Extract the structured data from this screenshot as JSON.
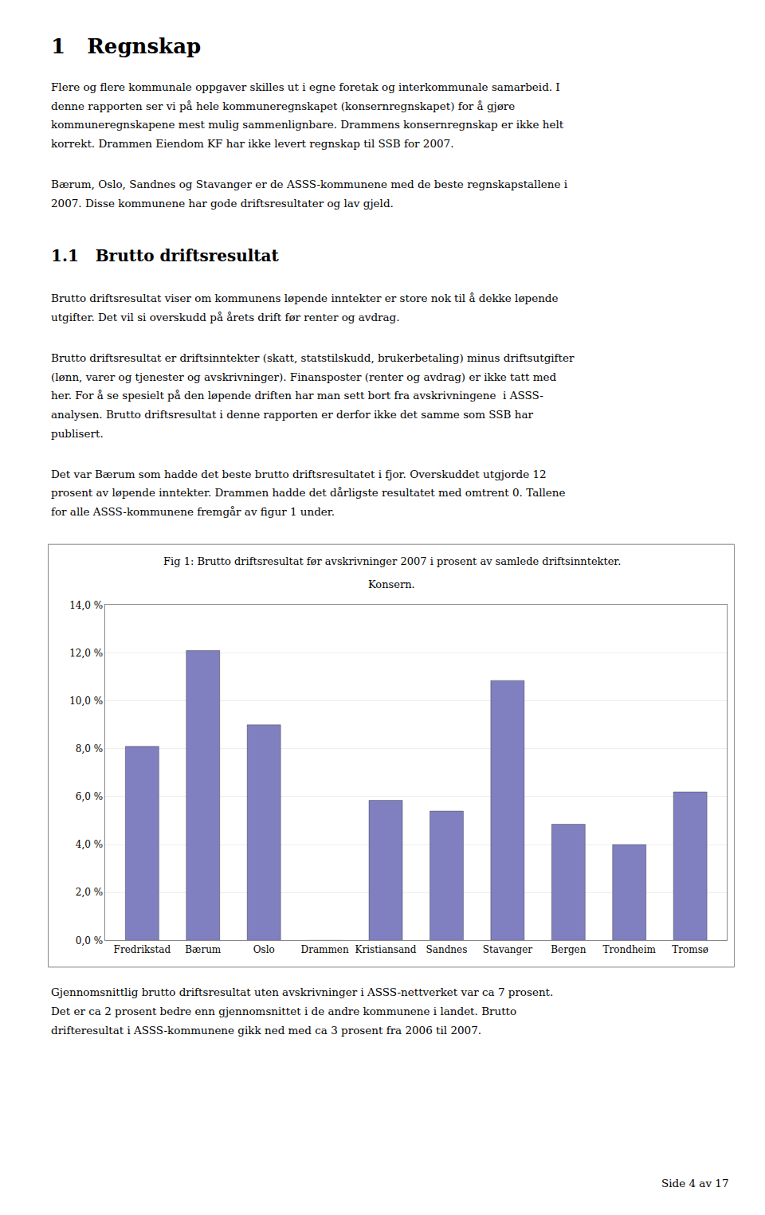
{
  "page_title": "1   Regnskap",
  "paragraphs_before_section": [
    [
      "Flere og flere kommunale oppgaver skilles ut i egne foretak og interkommunale samarbeid. I",
      "denne rapporten ser vi på hele kommuneregnskapet (konsernregnskapet) for å gjøre",
      "kommuneregnskapene mest mulig sammenlignbare. Drammens konsernregnskap er ikke helt",
      "korrekt. Drammen Eiendom KF har ikke levert regnskap til SSB for 2007."
    ],
    [
      "Bærum, Oslo, Sandnes og Stavanger er de ASSS-kommunene med de beste regnskapstallene i",
      "2007. Disse kommunene har gode driftsresultater og lav gjeld."
    ]
  ],
  "section_title": "1.1   Brutto driftsresultat",
  "paragraphs_after_section": [
    [
      "Brutto driftsresultat viser om kommunens løpende inntekter er store nok til å dekke løpende",
      "utgifter. Det vil si overskudd på årets drift før renter og avdrag."
    ],
    [
      "Brutto driftsresultat er driftsinntekter (skatt, statstilskudd, brukerbetaling) minus driftsutgifter",
      "(lønn, varer og tjenester og avskrivninger). Finansposter (renter og avdrag) er ikke tatt med",
      "her. For å se spesielt på den løpende driften har man sett bort fra avskrivningene  i ASSS-",
      "analysen. Brutto driftsresultat i denne rapporten er derfor ikke det samme som SSB har",
      "publisert."
    ],
    [
      "Det var Bærum som hadde det beste brutto driftsresultatet i fjor. Overskuddet utgjorde 12",
      "prosent av løpende inntekter. Drammen hadde det dårligste resultatet med omtrent 0. Tallene",
      "for alle ASSS-kommunene fremgår av figur 1 under."
    ]
  ],
  "paragraph_after_chart": [
    "Gjennomsnittlig brutto driftsresultat uten avskrivninger i ASSS-nettverket var ca 7 prosent.",
    "Det er ca 2 prosent bedre enn gjennomsnittet i de andre kommunene i landet. Brutto",
    "drifteresultat i ASSS-kommunene gikk ned med ca 3 prosent fra 2006 til 2007."
  ],
  "page_number": "Side 4 av 17",
  "chart_data": {
    "type": "bar",
    "title": "Fig 1: Brutto driftsresultat før avskrivninger 2007 i prosent av samlede driftsinntekter.",
    "subtitle": "Konsern.",
    "categories": [
      "Fredrikstad",
      "Bærum",
      "Oslo",
      "Drammen",
      "Kristiansand",
      "Sandnes",
      "Stavanger",
      "Bergen",
      "Trondheim",
      "Tromsø"
    ],
    "values": [
      8.1,
      12.1,
      9.0,
      0.0,
      5.85,
      5.4,
      10.85,
      4.85,
      4.0,
      6.2
    ],
    "color": "#8080C0",
    "ylim": [
      0,
      14
    ],
    "yticks": [
      {
        "value": 0,
        "label": "0,0 %"
      },
      {
        "value": 2,
        "label": "2,0 %"
      },
      {
        "value": 4,
        "label": "4,0 %"
      },
      {
        "value": 6,
        "label": "6,0 %"
      },
      {
        "value": 8,
        "label": "8,0 %"
      },
      {
        "value": 10,
        "label": "10,0 %"
      },
      {
        "value": 12,
        "label": "12,0 %"
      },
      {
        "value": 14,
        "label": "14,0 %"
      }
    ],
    "grid": true
  }
}
